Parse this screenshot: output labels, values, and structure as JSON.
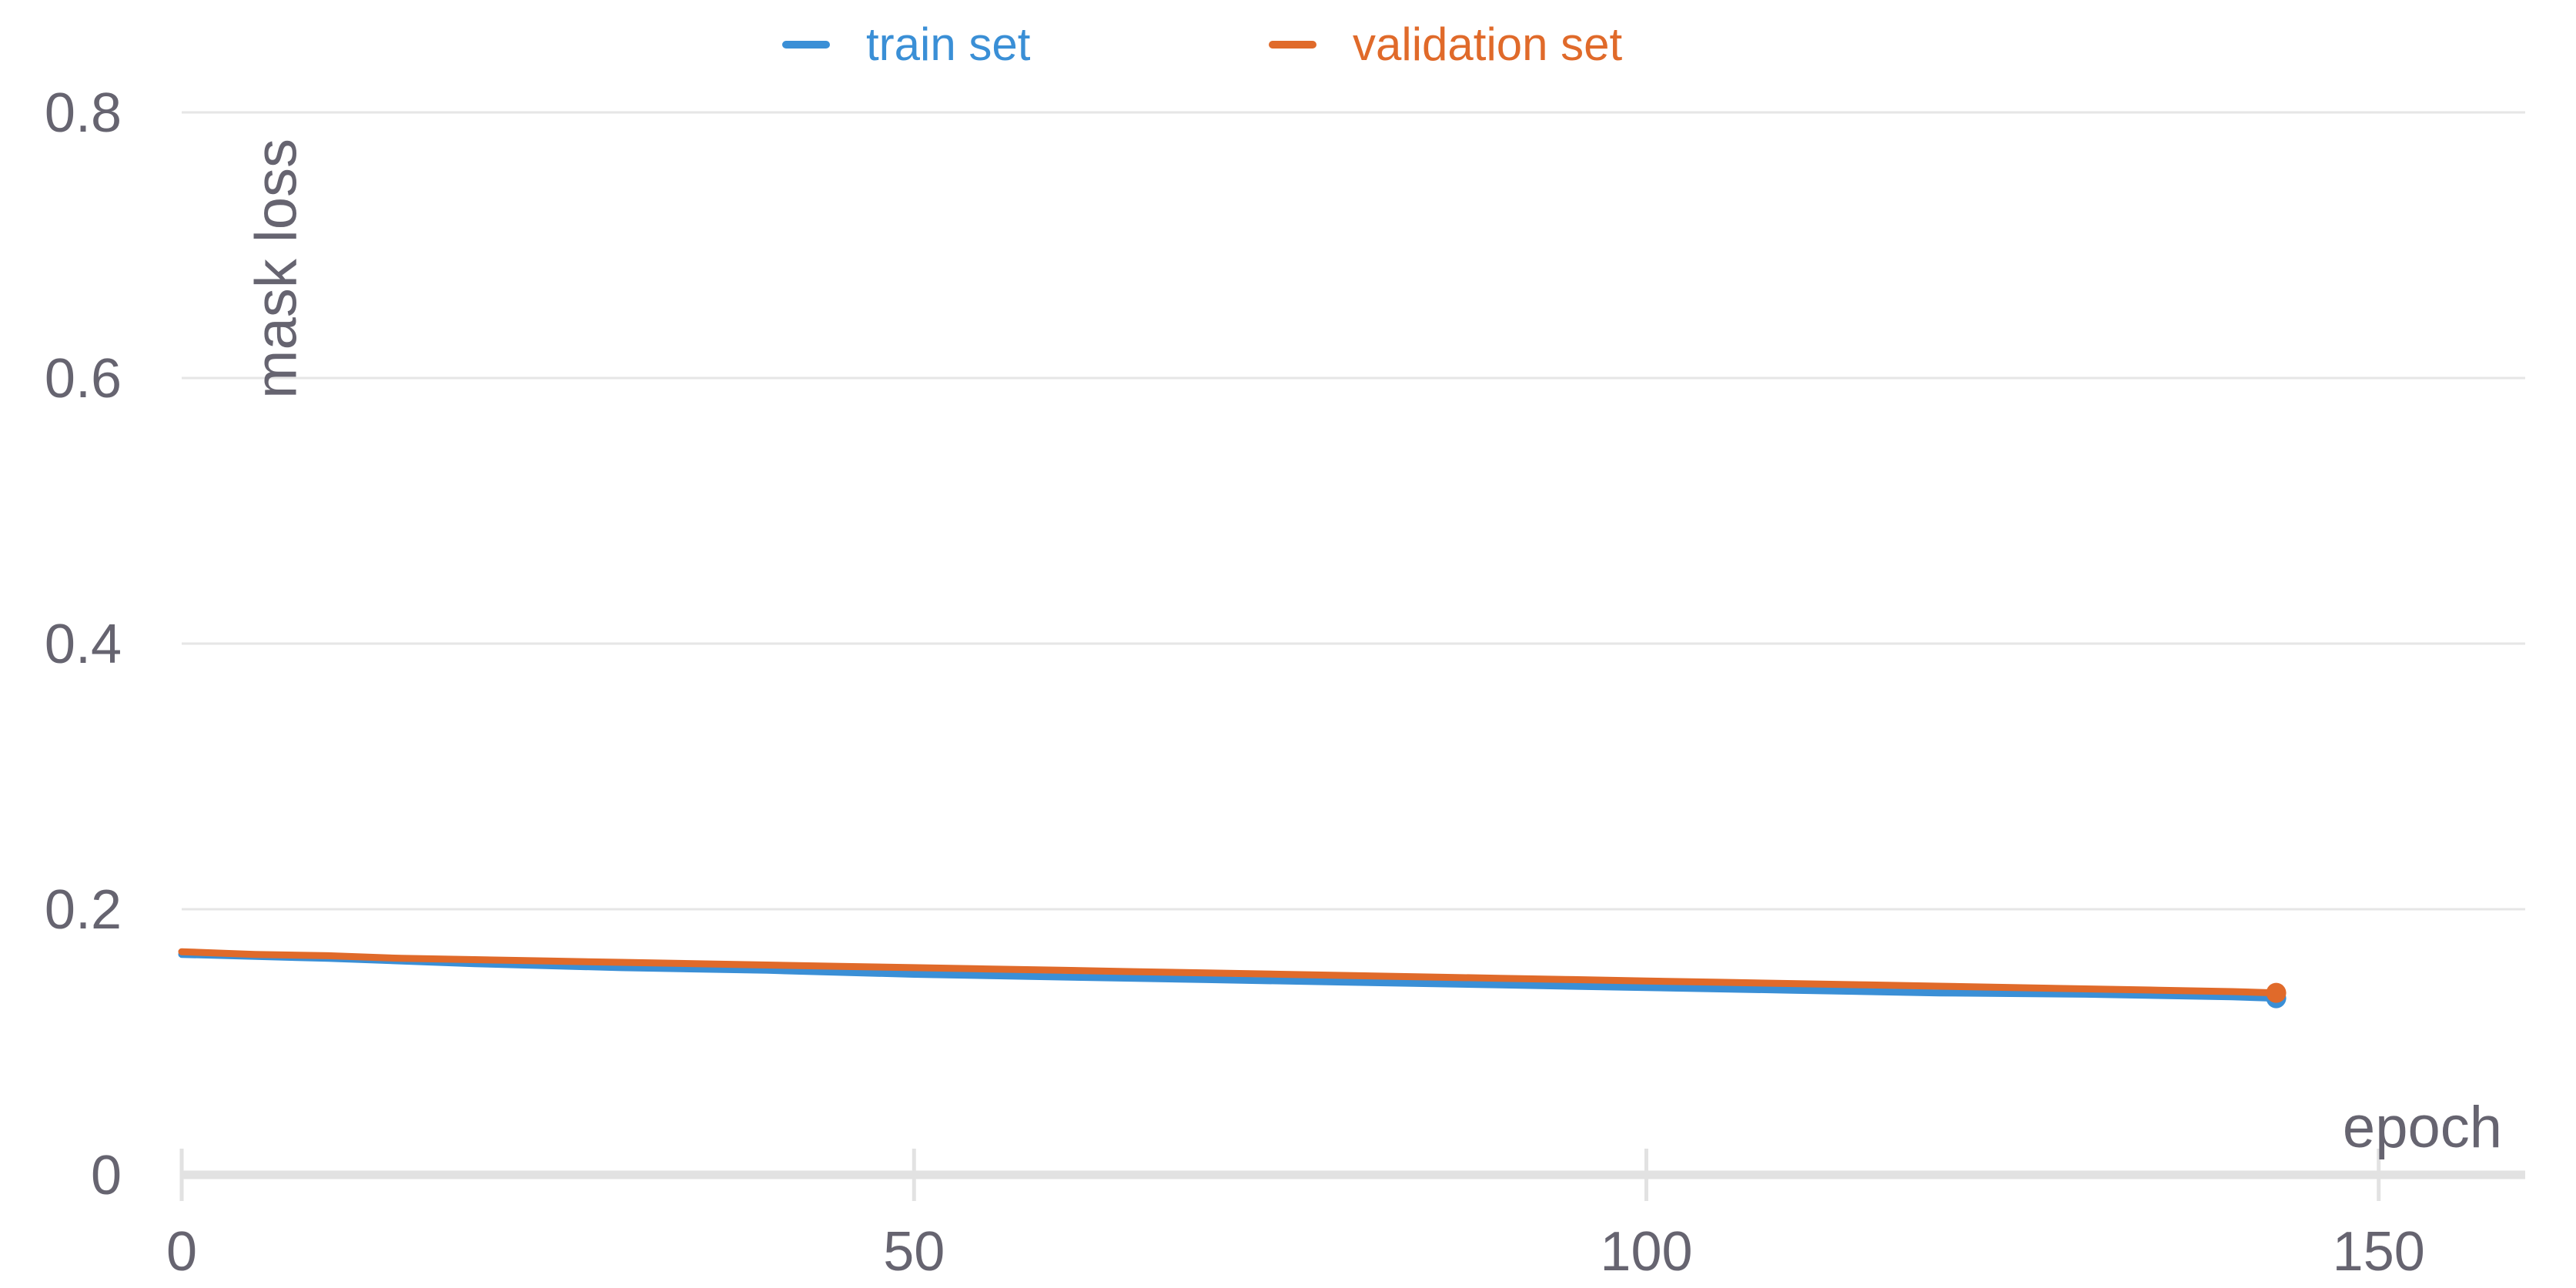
{
  "chart_data": {
    "type": "line",
    "xlabel": "epoch",
    "ylabel": "mask loss",
    "xlim": [
      0,
      160
    ],
    "ylim": [
      0,
      0.8
    ],
    "x_ticks": [
      "0",
      "50",
      "100",
      "150"
    ],
    "x_tick_values": [
      0,
      50,
      100,
      150
    ],
    "y_ticks": [
      "0",
      "0.2",
      "0.4",
      "0.6",
      "0.8"
    ],
    "y_tick_values": [
      0,
      0.2,
      0.4,
      0.6,
      0.8
    ],
    "grid": true,
    "legend": "top-center",
    "series": [
      {
        "name": "train set",
        "color": "#3a8fd6",
        "x": [
          0,
          10,
          20,
          30,
          40,
          50,
          60,
          70,
          80,
          90,
          100,
          110,
          120,
          130,
          140,
          143
        ],
        "y": [
          0.166,
          0.163,
          0.159,
          0.156,
          0.154,
          0.151,
          0.149,
          0.147,
          0.145,
          0.143,
          0.141,
          0.139,
          0.137,
          0.136,
          0.134,
          0.133
        ]
      },
      {
        "name": "validation set",
        "color": "#e06a2a",
        "x": [
          0,
          5,
          10,
          15,
          20,
          25,
          30,
          35,
          40,
          45,
          50,
          55,
          60,
          65,
          70,
          75,
          80,
          85,
          90,
          95,
          100,
          105,
          110,
          115,
          120,
          125,
          130,
          135,
          140,
          143
        ],
        "y": [
          0.168,
          0.166,
          0.165,
          0.163,
          0.162,
          0.161,
          0.16,
          0.159,
          0.158,
          0.157,
          0.156,
          0.155,
          0.154,
          0.153,
          0.152,
          0.151,
          0.15,
          0.149,
          0.148,
          0.147,
          0.146,
          0.145,
          0.144,
          0.143,
          0.142,
          0.141,
          0.14,
          0.139,
          0.138,
          0.137
        ]
      }
    ]
  }
}
